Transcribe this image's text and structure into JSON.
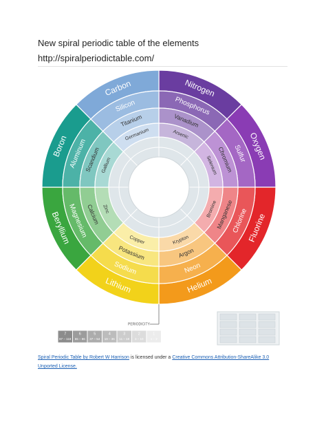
{
  "header": {
    "title": "New spiral periodic table of the elements",
    "url": "http://spiralperiodictable.com/"
  },
  "figure": {
    "sectors": [
      {
        "color": "#6a3da0",
        "elements": [
          "Nitrogen",
          "Phosphorus",
          "Vanadium",
          "Arsenic"
        ]
      },
      {
        "color": "#8a3cb4",
        "elements": [
          "Oxygen",
          "Sulfur",
          "Chromium",
          "Selenium"
        ]
      },
      {
        "color": "#e3262a",
        "elements": [
          "Fluorine",
          "Chlorine",
          "Manganese",
          "Bromine"
        ]
      },
      {
        "color": "#f39a1b",
        "elements": [
          "Helium",
          "Neon",
          "Argon",
          "Krypton"
        ]
      },
      {
        "color": "#f2d21a",
        "elements": [
          "Lithium",
          "Sodium",
          "Potassium",
          "Copper"
        ]
      },
      {
        "color": "#3aa63f",
        "elements": [
          "Beryllium",
          "Magnesium",
          "Calcium",
          "Zinc"
        ]
      },
      {
        "color": "#1a9c8e",
        "elements": [
          "Boron",
          "Aluminum",
          "Scandium",
          "Gallium"
        ]
      },
      {
        "color": "#7fa9d8",
        "elements": [
          "Carbon",
          "Silicon",
          "Titanium",
          "Germanium"
        ]
      }
    ],
    "periodicity_label": "PERIODICITY",
    "periods": [
      7,
      6,
      5,
      4,
      3,
      2,
      1
    ],
    "ranges": [
      "87 – 118",
      "55 – 86",
      "37 – 54",
      "19 – 36",
      "11 – 18",
      "3 – 10",
      "1 – 2"
    ]
  },
  "footer": {
    "attribution": "Spiral Periodic Table by Robert W Harrison",
    "text": "is licensed under a",
    "license": "Creative Commons Attribution-ShareAlike 3.0 Unported License."
  }
}
